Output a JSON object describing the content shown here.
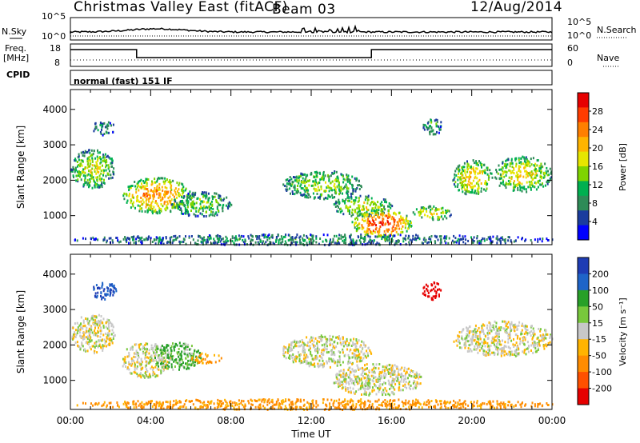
{
  "header": {
    "title": "Christmas Valley East (fitACF)",
    "beam": "Beam 03",
    "date": "12/Aug/2014"
  },
  "top_panels": {
    "nsky_label": "N.Sky",
    "nsearch_label": "N.Search",
    "freq_label_1": "Freq.",
    "freq_label_2": "[MHz]",
    "nave_label": "Nave",
    "cpid_label": "CPID",
    "cpid_value": "normal (fast) 151 IF",
    "noise_ticks_left": [
      "10^5",
      "10^0"
    ],
    "noise_ticks_right": [
      "10^5",
      "10^0"
    ],
    "freq_ticks_left": [
      "18",
      "8"
    ],
    "freq_ticks_right": [
      "60",
      "0"
    ]
  },
  "chart_data": [
    {
      "type": "heatmap",
      "name": "power",
      "xlabel": "",
      "ylabel": "Slant Range [km]",
      "ylim": [
        180,
        4560
      ],
      "yticks": [
        "1000",
        "2000",
        "3000",
        "4000"
      ],
      "colorbar_label": "Power [dB]",
      "colorbar_ticks": [
        "4",
        "8",
        "12",
        "16",
        "20",
        "24",
        "28"
      ],
      "colors": [
        "#0000ff",
        "#1a3c9e",
        "#2e8b57",
        "#00b050",
        "#7fd400",
        "#e6e600",
        "#ffb400",
        "#ff7f00",
        "#ff3c00",
        "#e60000"
      ],
      "regions": [
        {
          "t0": 0.0,
          "t1": 2.2,
          "r0": 1800,
          "r1": 2900,
          "level": 0.55
        },
        {
          "t0": 1.0,
          "t1": 2.2,
          "r0": 3300,
          "r1": 3700,
          "level": 0.3
        },
        {
          "t0": 2.5,
          "t1": 6.0,
          "r0": 1100,
          "r1": 2100,
          "level": 0.75
        },
        {
          "t0": 5.0,
          "t1": 8.0,
          "r0": 1000,
          "r1": 1700,
          "level": 0.45
        },
        {
          "t0": 10.5,
          "t1": 14.5,
          "r0": 1500,
          "r1": 2300,
          "level": 0.5
        },
        {
          "t0": 13.0,
          "t1": 16.0,
          "r0": 1000,
          "r1": 1600,
          "level": 0.55
        },
        {
          "t0": 14.0,
          "t1": 17.0,
          "r0": 400,
          "r1": 1200,
          "level": 0.9
        },
        {
          "t0": 17.0,
          "t1": 19.0,
          "r0": 900,
          "r1": 1300,
          "level": 0.6
        },
        {
          "t0": 17.5,
          "t1": 18.5,
          "r0": 3300,
          "r1": 3800,
          "level": 0.35
        },
        {
          "t0": 19.0,
          "t1": 21.0,
          "r0": 1600,
          "r1": 2600,
          "level": 0.65
        },
        {
          "t0": 21.0,
          "t1": 24.0,
          "r0": 1700,
          "r1": 2700,
          "level": 0.6
        },
        {
          "t0": 0.0,
          "t1": 24.0,
          "r0": 200,
          "r1": 500,
          "level": 0.3
        }
      ]
    },
    {
      "type": "heatmap",
      "name": "velocity",
      "xlabel": "Time UT",
      "ylabel": "Slant Range [km]",
      "ylim": [
        180,
        4560
      ],
      "yticks": [
        "1000",
        "2000",
        "3000",
        "4000"
      ],
      "xlim": [
        0,
        24
      ],
      "xticks": [
        "00:00",
        "04:00",
        "08:00",
        "12:00",
        "16:00",
        "20:00",
        "00:00"
      ],
      "colorbar_label": "Velocity [m s⁻¹]",
      "colorbar_ticks": [
        "200",
        "100",
        "50",
        "15",
        "-15",
        "-50",
        "-100",
        "-200"
      ],
      "colors": [
        "#1e3cb4",
        "#1e64c8",
        "#28a028",
        "#78c83c",
        "#c8c8c8",
        "#ffb400",
        "#ff8c00",
        "#ff5000",
        "#e60000"
      ],
      "regions": [
        {
          "t0": 0.0,
          "t1": 2.2,
          "r0": 1800,
          "r1": 2900,
          "v": 0
        },
        {
          "t0": 1.0,
          "t1": 2.3,
          "r0": 3300,
          "r1": 3800,
          "v": 150
        },
        {
          "t0": 2.5,
          "t1": 5.0,
          "r0": 1100,
          "r1": 2100,
          "v": 0
        },
        {
          "t0": 4.0,
          "t1": 6.5,
          "r0": 1300,
          "r1": 2100,
          "v": 35
        },
        {
          "t0": 6.0,
          "t1": 7.5,
          "r0": 1500,
          "r1": 1800,
          "v": -60
        },
        {
          "t0": 10.5,
          "t1": 15.0,
          "r0": 1400,
          "r1": 2300,
          "v": 0
        },
        {
          "t0": 13.0,
          "t1": 17.5,
          "r0": 600,
          "r1": 1500,
          "v": 0
        },
        {
          "t0": 17.5,
          "t1": 18.5,
          "r0": 3300,
          "r1": 3800,
          "v": -220
        },
        {
          "t0": 19.0,
          "t1": 24.0,
          "r0": 1700,
          "r1": 2700,
          "v": 0
        },
        {
          "t0": 0.0,
          "t1": 24.0,
          "r0": 200,
          "r1": 500,
          "v": -60
        }
      ]
    }
  ]
}
